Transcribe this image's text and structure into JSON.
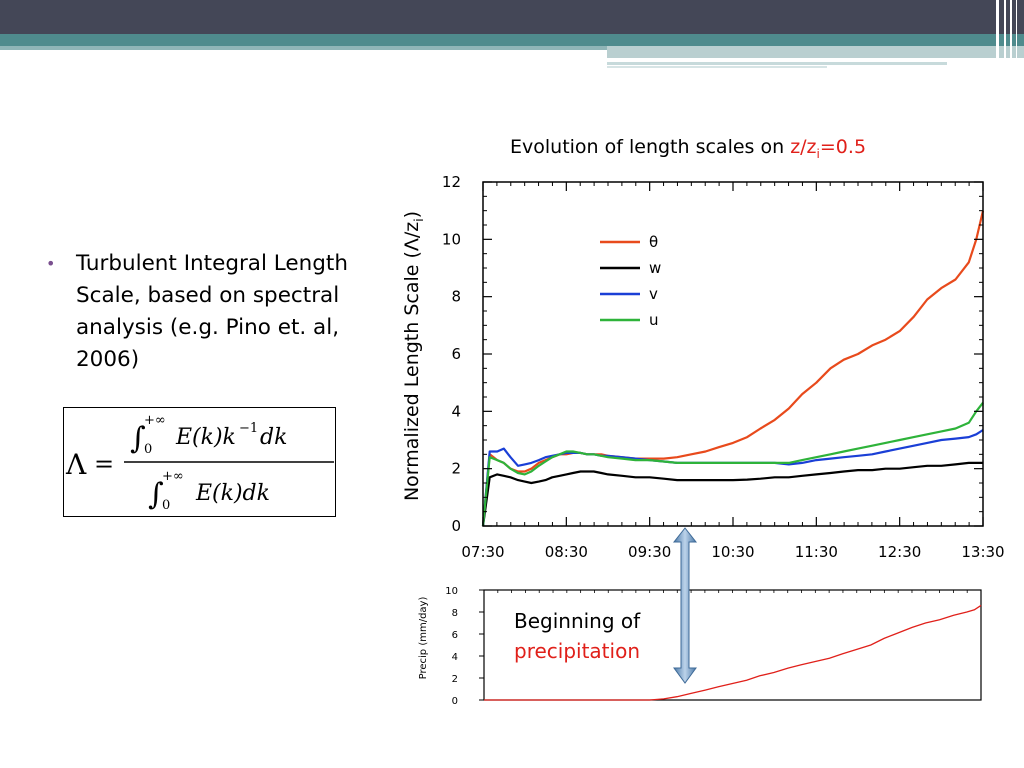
{
  "slide": {
    "bullet": "Turbulent Integral Length Scale, based on spectral analysis (e.g. Pino et. al, 2006)",
    "annotation_line1": "Beginning of",
    "annotation_line2": "precipitation"
  },
  "colors": {
    "theta": "#e84a1c",
    "w": "#000000",
    "v": "#1a3fd6",
    "u": "#2eb33a",
    "precip": "#e0201a",
    "title_accent": "#e0201a",
    "header": "#444757",
    "band": "#4f8b8d"
  },
  "chart_data": [
    {
      "type": "line",
      "title_prefix": "Evolution of length scales on ",
      "title_highlight": "z/z",
      "title_highlight_sub": "i",
      "title_highlight_suffix": "=0.5",
      "ylabel": "Normalized Length Scale (Λ/z",
      "ylabel_sub": "i",
      "ylabel_suffix": ")",
      "xlabel": "",
      "x_tick_labels": [
        "07:30",
        "08:30",
        "09:30",
        "10:30",
        "11:30",
        "12:30",
        "13:30"
      ],
      "x_ticks_hours": [
        7.5,
        8.5,
        9.5,
        10.5,
        11.5,
        12.5,
        13.5
      ],
      "y_ticks": [
        0,
        2,
        4,
        6,
        8,
        10,
        12
      ],
      "xlim": [
        7.5,
        13.5
      ],
      "ylim": [
        0,
        12
      ],
      "legend_position": "top-center",
      "x": [
        7.5,
        7.58,
        7.67,
        7.75,
        7.83,
        7.92,
        8.0,
        8.08,
        8.17,
        8.25,
        8.33,
        8.42,
        8.5,
        8.58,
        8.67,
        8.75,
        8.83,
        8.92,
        9.0,
        9.17,
        9.33,
        9.5,
        9.67,
        9.83,
        10.0,
        10.17,
        10.33,
        10.5,
        10.67,
        10.83,
        11.0,
        11.17,
        11.33,
        11.5,
        11.67,
        11.83,
        12.0,
        12.17,
        12.33,
        12.5,
        12.67,
        12.83,
        13.0,
        13.17,
        13.33,
        13.42,
        13.5
      ],
      "series": [
        {
          "name": "θ",
          "color_key": "theta",
          "values": [
            0.0,
            2.5,
            2.3,
            2.2,
            2.0,
            1.9,
            1.9,
            2.0,
            2.2,
            2.3,
            2.4,
            2.5,
            2.5,
            2.55,
            2.55,
            2.5,
            2.5,
            2.5,
            2.45,
            2.4,
            2.35,
            2.35,
            2.35,
            2.4,
            2.5,
            2.6,
            2.75,
            2.9,
            3.1,
            3.4,
            3.7,
            4.1,
            4.6,
            5.0,
            5.5,
            5.8,
            6.0,
            6.3,
            6.5,
            6.8,
            7.3,
            7.9,
            8.3,
            8.6,
            9.2,
            10.0,
            11.0
          ]
        },
        {
          "name": "w",
          "color_key": "w",
          "values": [
            0.0,
            1.7,
            1.8,
            1.75,
            1.7,
            1.6,
            1.55,
            1.5,
            1.55,
            1.6,
            1.7,
            1.75,
            1.8,
            1.85,
            1.9,
            1.9,
            1.9,
            1.85,
            1.8,
            1.75,
            1.7,
            1.7,
            1.65,
            1.6,
            1.6,
            1.6,
            1.6,
            1.6,
            1.62,
            1.65,
            1.7,
            1.7,
            1.75,
            1.8,
            1.85,
            1.9,
            1.95,
            1.95,
            2.0,
            2.0,
            2.05,
            2.1,
            2.1,
            2.15,
            2.2,
            2.2,
            2.2
          ]
        },
        {
          "name": "v",
          "color_key": "v",
          "values": [
            0.0,
            2.6,
            2.6,
            2.7,
            2.4,
            2.1,
            2.15,
            2.2,
            2.3,
            2.4,
            2.45,
            2.5,
            2.55,
            2.55,
            2.55,
            2.5,
            2.5,
            2.45,
            2.45,
            2.4,
            2.35,
            2.3,
            2.25,
            2.2,
            2.2,
            2.2,
            2.2,
            2.2,
            2.2,
            2.2,
            2.2,
            2.15,
            2.2,
            2.3,
            2.35,
            2.4,
            2.45,
            2.5,
            2.6,
            2.7,
            2.8,
            2.9,
            3.0,
            3.05,
            3.1,
            3.2,
            3.35
          ]
        },
        {
          "name": "u",
          "color_key": "u",
          "values": [
            0.0,
            2.4,
            2.3,
            2.2,
            2.0,
            1.85,
            1.8,
            1.9,
            2.1,
            2.25,
            2.4,
            2.5,
            2.6,
            2.6,
            2.55,
            2.5,
            2.5,
            2.45,
            2.4,
            2.35,
            2.3,
            2.3,
            2.25,
            2.2,
            2.2,
            2.2,
            2.2,
            2.2,
            2.2,
            2.2,
            2.2,
            2.2,
            2.3,
            2.4,
            2.5,
            2.6,
            2.7,
            2.8,
            2.9,
            3.0,
            3.1,
            3.2,
            3.3,
            3.4,
            3.6,
            4.0,
            4.3
          ]
        }
      ]
    },
    {
      "type": "line",
      "ylabel": "Precip (mm/day)",
      "xlim": [
        7.5,
        13.5
      ],
      "ylim": [
        0,
        10
      ],
      "y_ticks": [
        0,
        2,
        4,
        6,
        8,
        10
      ],
      "grid": false,
      "x": [
        7.5,
        8.0,
        8.5,
        9.0,
        9.5,
        9.67,
        9.83,
        10.0,
        10.17,
        10.33,
        10.5,
        10.67,
        10.83,
        11.0,
        11.17,
        11.33,
        11.5,
        11.67,
        11.83,
        12.0,
        12.17,
        12.33,
        12.5,
        12.67,
        12.83,
        13.0,
        13.17,
        13.33,
        13.42,
        13.5
      ],
      "series": [
        {
          "name": "",
          "color_key": "precip",
          "values": [
            0.0,
            0.0,
            0.0,
            0.0,
            0.0,
            0.1,
            0.3,
            0.6,
            0.9,
            1.2,
            1.5,
            1.8,
            2.2,
            2.5,
            2.9,
            3.2,
            3.5,
            3.8,
            4.2,
            4.6,
            5.0,
            5.6,
            6.1,
            6.6,
            7.0,
            7.3,
            7.7,
            8.0,
            8.2,
            8.6
          ]
        }
      ]
    }
  ]
}
